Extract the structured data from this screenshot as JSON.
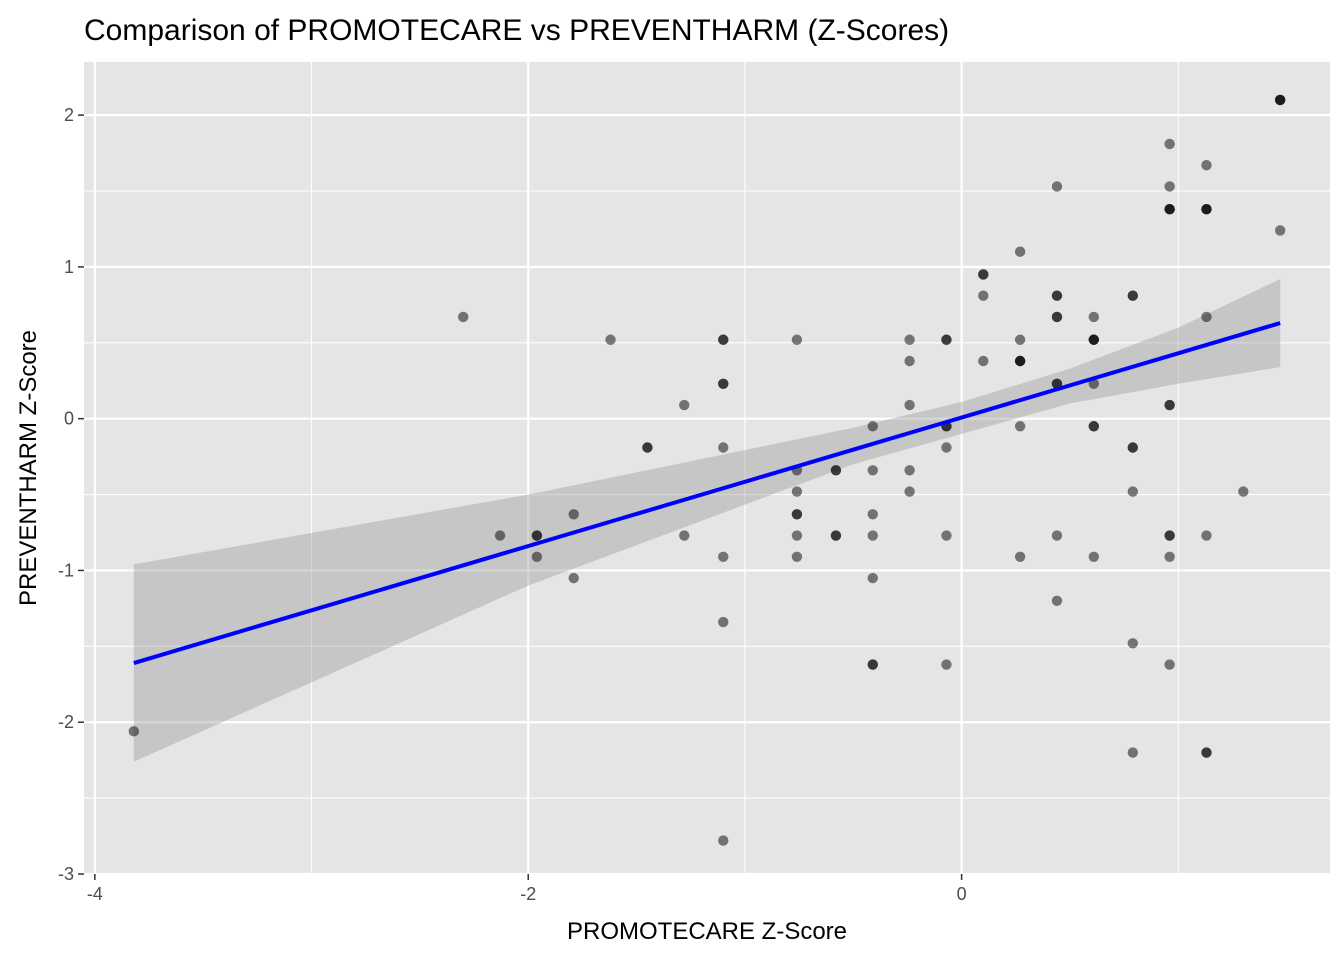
{
  "chart_data": {
    "type": "scatter",
    "title": "Comparison of PROMOTECARE vs PREVENTHARM (Z-Scores)",
    "xlabel": "PROMOTECARE Z-Score",
    "ylabel": "PREVENTHARM Z-Score",
    "xlim": [
      -4.05,
      1.7
    ],
    "ylim": [
      -3.0,
      2.35
    ],
    "x_ticks": [
      -4,
      -2,
      0
    ],
    "x_tick_labels": [
      "-4",
      "-2",
      "0"
    ],
    "y_ticks": [
      2,
      1,
      0,
      -1,
      -2,
      -3
    ],
    "y_tick_labels": [
      "2",
      "1",
      "0",
      "-1",
      "-2",
      "-3"
    ],
    "grid": true,
    "legend": "none",
    "colors": {
      "panel_background": "#e5e5e5",
      "grid": "#ffffff",
      "point": "#000000",
      "regression_line": "#0000ff",
      "confidence_band": "#999999"
    },
    "points": [
      {
        "x": -3.82,
        "y": -2.06
      },
      {
        "x": -2.3,
        "y": 0.67
      },
      {
        "x": -2.13,
        "y": -0.77
      },
      {
        "x": -1.96,
        "y": -0.77
      },
      {
        "x": -1.96,
        "y": -0.77
      },
      {
        "x": -1.96,
        "y": -0.91
      },
      {
        "x": -1.79,
        "y": -0.63
      },
      {
        "x": -1.79,
        "y": -1.05
      },
      {
        "x": -1.62,
        "y": 0.52
      },
      {
        "x": -1.45,
        "y": -0.19
      },
      {
        "x": -1.45,
        "y": -0.19
      },
      {
        "x": -1.28,
        "y": 0.09
      },
      {
        "x": -1.28,
        "y": -0.77
      },
      {
        "x": -1.1,
        "y": 0.52
      },
      {
        "x": -1.1,
        "y": 0.52
      },
      {
        "x": -1.1,
        "y": 0.23
      },
      {
        "x": -1.1,
        "y": 0.23
      },
      {
        "x": -1.1,
        "y": -0.19
      },
      {
        "x": -1.1,
        "y": -0.91
      },
      {
        "x": -1.1,
        "y": -1.34
      },
      {
        "x": -1.1,
        "y": -2.78
      },
      {
        "x": -0.76,
        "y": 0.52
      },
      {
        "x": -0.76,
        "y": -0.34
      },
      {
        "x": -0.76,
        "y": -0.48
      },
      {
        "x": -0.76,
        "y": -0.63
      },
      {
        "x": -0.76,
        "y": -0.63
      },
      {
        "x": -0.76,
        "y": -0.77
      },
      {
        "x": -0.76,
        "y": -0.91
      },
      {
        "x": -0.58,
        "y": -0.34
      },
      {
        "x": -0.58,
        "y": -0.34
      },
      {
        "x": -0.58,
        "y": -0.77
      },
      {
        "x": -0.58,
        "y": -0.77
      },
      {
        "x": -0.41,
        "y": -0.05
      },
      {
        "x": -0.41,
        "y": -0.34
      },
      {
        "x": -0.41,
        "y": -0.63
      },
      {
        "x": -0.41,
        "y": -0.77
      },
      {
        "x": -0.41,
        "y": -1.05
      },
      {
        "x": -0.41,
        "y": -1.62
      },
      {
        "x": -0.41,
        "y": -1.62
      },
      {
        "x": -0.24,
        "y": 0.52
      },
      {
        "x": -0.24,
        "y": 0.38
      },
      {
        "x": -0.24,
        "y": 0.09
      },
      {
        "x": -0.24,
        "y": -0.34
      },
      {
        "x": -0.24,
        "y": -0.48
      },
      {
        "x": -0.07,
        "y": 0.52
      },
      {
        "x": -0.07,
        "y": 0.52
      },
      {
        "x": -0.07,
        "y": -0.05
      },
      {
        "x": -0.07,
        "y": -0.05
      },
      {
        "x": -0.07,
        "y": -0.19
      },
      {
        "x": -0.07,
        "y": -0.77
      },
      {
        "x": -0.07,
        "y": -1.62
      },
      {
        "x": 0.1,
        "y": 0.95
      },
      {
        "x": 0.1,
        "y": 0.95
      },
      {
        "x": 0.1,
        "y": 0.81
      },
      {
        "x": 0.1,
        "y": 0.38
      },
      {
        "x": 0.27,
        "y": 1.1
      },
      {
        "x": 0.27,
        "y": 0.52
      },
      {
        "x": 0.27,
        "y": 0.38
      },
      {
        "x": 0.27,
        "y": 0.38
      },
      {
        "x": 0.27,
        "y": 0.38
      },
      {
        "x": 0.27,
        "y": -0.05
      },
      {
        "x": 0.27,
        "y": -0.91
      },
      {
        "x": 0.44,
        "y": 1.53
      },
      {
        "x": 0.44,
        "y": 0.81
      },
      {
        "x": 0.44,
        "y": 0.81
      },
      {
        "x": 0.44,
        "y": 0.67
      },
      {
        "x": 0.44,
        "y": 0.67
      },
      {
        "x": 0.44,
        "y": 0.23
      },
      {
        "x": 0.44,
        "y": 0.23
      },
      {
        "x": 0.44,
        "y": -0.77
      },
      {
        "x": 0.44,
        "y": -1.2
      },
      {
        "x": 0.61,
        "y": 0.67
      },
      {
        "x": 0.61,
        "y": 0.52
      },
      {
        "x": 0.61,
        "y": 0.52
      },
      {
        "x": 0.61,
        "y": 0.52
      },
      {
        "x": 0.61,
        "y": 0.23
      },
      {
        "x": 0.61,
        "y": -0.05
      },
      {
        "x": 0.61,
        "y": -0.05
      },
      {
        "x": 0.61,
        "y": -0.91
      },
      {
        "x": 0.79,
        "y": 0.81
      },
      {
        "x": 0.79,
        "y": 0.81
      },
      {
        "x": 0.79,
        "y": -0.19
      },
      {
        "x": 0.79,
        "y": -0.19
      },
      {
        "x": 0.79,
        "y": -0.48
      },
      {
        "x": 0.79,
        "y": -1.48
      },
      {
        "x": 0.79,
        "y": -2.2
      },
      {
        "x": 0.96,
        "y": 1.81
      },
      {
        "x": 0.96,
        "y": 1.53
      },
      {
        "x": 0.96,
        "y": 1.38
      },
      {
        "x": 0.96,
        "y": 1.38
      },
      {
        "x": 0.96,
        "y": 1.38
      },
      {
        "x": 0.96,
        "y": 0.09
      },
      {
        "x": 0.96,
        "y": 0.09
      },
      {
        "x": 0.96,
        "y": -0.77
      },
      {
        "x": 0.96,
        "y": -0.77
      },
      {
        "x": 0.96,
        "y": -0.91
      },
      {
        "x": 0.96,
        "y": -1.62
      },
      {
        "x": 1.13,
        "y": 1.67
      },
      {
        "x": 1.13,
        "y": 1.38
      },
      {
        "x": 1.13,
        "y": 1.38
      },
      {
        "x": 1.13,
        "y": 1.38
      },
      {
        "x": 1.13,
        "y": 0.67
      },
      {
        "x": 1.13,
        "y": -0.77
      },
      {
        "x": 1.13,
        "y": -2.2
      },
      {
        "x": 1.13,
        "y": -2.2
      },
      {
        "x": 1.3,
        "y": -0.48
      },
      {
        "x": 1.47,
        "y": 2.1
      },
      {
        "x": 1.47,
        "y": 2.1
      },
      {
        "x": 1.47,
        "y": 2.1
      },
      {
        "x": 1.47,
        "y": 1.24
      }
    ],
    "regression_line": {
      "x": [
        -3.82,
        1.47
      ],
      "y": [
        -1.61,
        0.63
      ]
    },
    "confidence_band": {
      "x": [
        -3.82,
        -2.0,
        -0.5,
        0.0,
        0.5,
        1.0,
        1.47
      ],
      "lower": [
        -2.26,
        -1.1,
        -0.3,
        -0.1,
        0.1,
        0.23,
        0.34
      ],
      "upper": [
        -0.96,
        -0.5,
        -0.06,
        0.11,
        0.33,
        0.6,
        0.92
      ]
    }
  }
}
